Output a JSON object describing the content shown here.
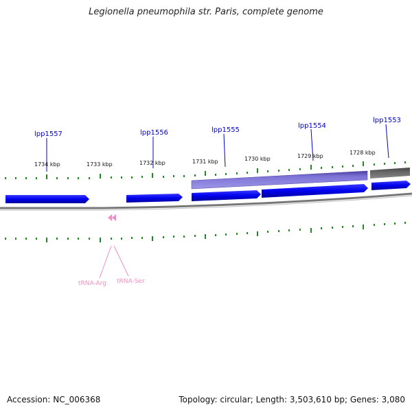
{
  "title": "Legionella pneumophila str. Paris, complete genome",
  "footer": {
    "accession": "Accession: NC_006368",
    "summary": "Topology: circular; Length: 3,503,610 bp; Genes: 3,080"
  },
  "colors": {
    "gene_forward": "#0000ee",
    "gene_selected": "#7d73d6",
    "gene_other": "#666666",
    "trna": "#f28ec1",
    "tick": "#1e8a1e",
    "backbone": "#777777",
    "label": "#0000cc"
  },
  "gene_labels": [
    "lpp1557",
    "lpp1556",
    "lpp1555",
    "lpp1554",
    "lpp1553"
  ],
  "kbp_labels": [
    "1734 kbp",
    "1733 kbp",
    "1732 kbp",
    "1731 kbp",
    "1730 kbp",
    "1729 kbp",
    "1728 kbp"
  ],
  "trna_labels": [
    "tRNA-Arg",
    "tRNA-Ser"
  ]
}
